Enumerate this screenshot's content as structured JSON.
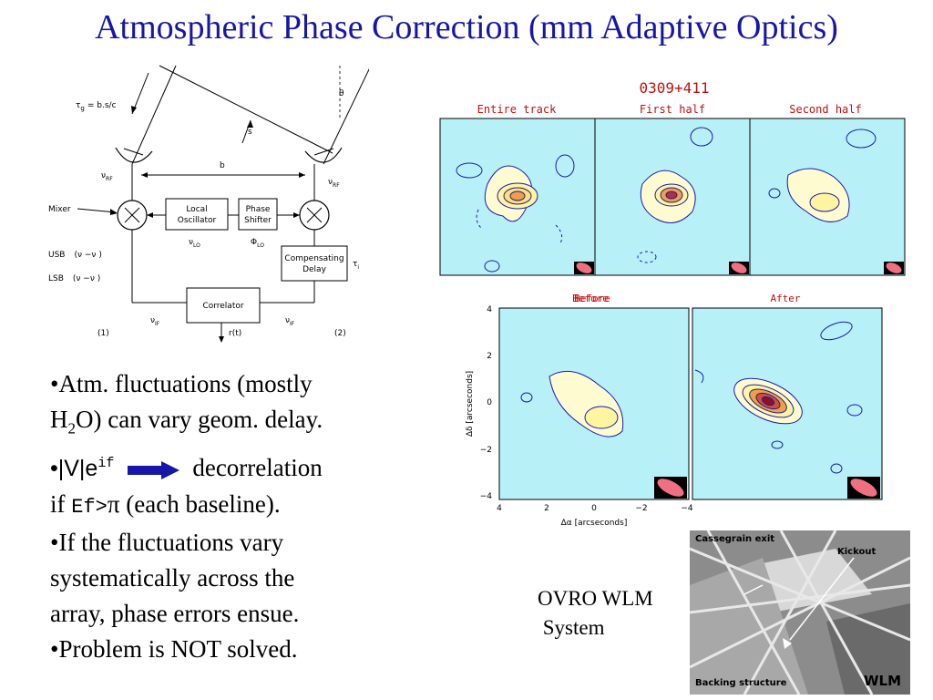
{
  "title": "Atmospheric Phase Correction (mm Adaptive Optics)",
  "diagram": {
    "tau_g": "τ",
    "tau_g_sub": "g",
    "tau_g_expr": "= b.s/c",
    "theta": "θ",
    "s": "s",
    "b": "b",
    "nu_rf_left": "ν",
    "nu_rf_right": "ν",
    "rf_sub": "RF",
    "mixer": "Mixer",
    "local_osc_1": "Local",
    "local_osc_2": "Oscillator",
    "nu_lo": "ν",
    "lo_sub": "LO",
    "phase_shift_1": "Phase",
    "phase_shift_2": "Shifter",
    "phi_lo": "Φ",
    "usb": "USB",
    "usb_expr": "(ν  −ν  )",
    "lsb": "LSB",
    "lsb_expr": "(ν  −ν  )",
    "comp_delay_1": "Compensating",
    "comp_delay_2": "Delay",
    "tau_i": "τ",
    "tau_i_sub": "i",
    "correlator": "Correlator",
    "nu_if_left": "ν",
    "nu_if_right": "ν",
    "if_sub": "IF",
    "r_t": "r(t)",
    "label_1": "(1)",
    "label_2": "(2)"
  },
  "bullets": {
    "b1_l1": "•Atm. fluctuations (mostly",
    "b1_l2_a": " H",
    "b1_l2_sub": "2",
    "b1_l2_b": "O) can vary geom. delay.",
    "b2_a": "•|V|e",
    "b2_sup": "if",
    "b2_b": "decorrelation",
    "b3_a": "  if ",
    "b3_mono": "Ef>",
    "b3_pi": "π",
    "b3_b": " (each baseline).",
    "b4_l1": "•If the fluctuations vary",
    "b4_l2": "  systematically across the",
    "b4_l3": "  array, phase errors ensue.",
    "b5": "•Problem is NOT solved."
  },
  "maps": {
    "source": "0309+411",
    "panel1": "Entire track",
    "panel2": "First half",
    "panel3": "Second half",
    "panel4": "Before",
    "panel5": "After",
    "y_axis_label": "Δδ  [arcseconds]",
    "x_axis_label": "Δα  [arcseconds]",
    "x_ticks": [
      "4",
      "2",
      "0",
      "−2",
      "−4"
    ],
    "y_ticks": [
      "4",
      "2",
      "0",
      "−2",
      "−4"
    ]
  },
  "caption": {
    "line1": "OVRO WLM",
    "line2": " System"
  },
  "photo": {
    "cassegrain": "Cassegrain exit",
    "kickout": "Kickout",
    "backing": "Backing structure",
    "wlm": "WLM"
  },
  "colors": {
    "title": "#1616a8",
    "map_bg": "#b8f0f8",
    "contour_pos": "#1a1ab4",
    "contour_neg": "#1a1ab4",
    "panel_label": "#c01010"
  }
}
